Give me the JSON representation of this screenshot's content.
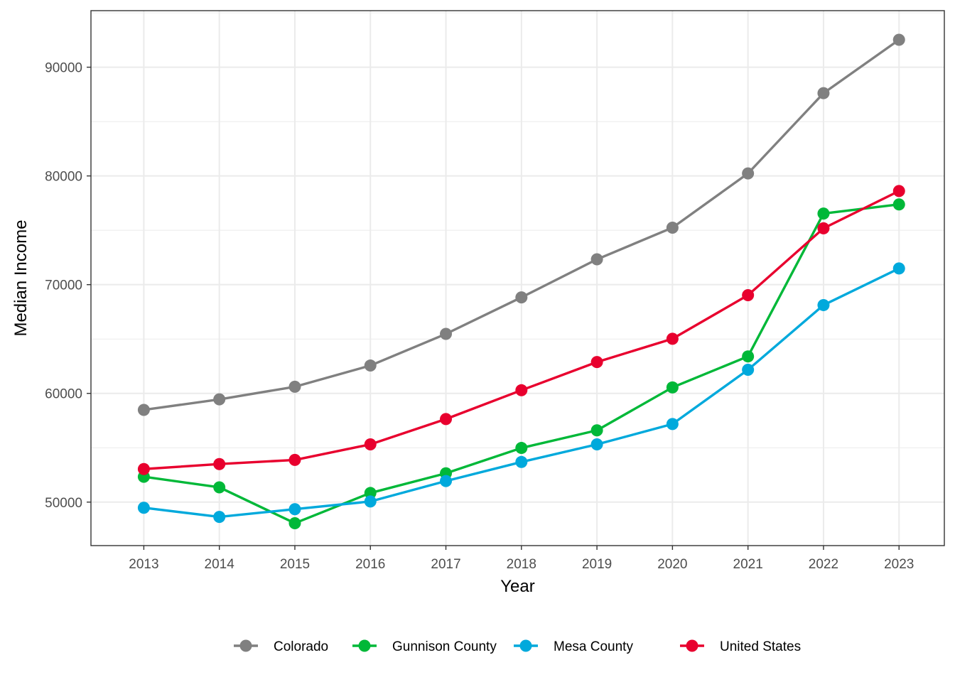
{
  "chart_data": {
    "type": "line",
    "title": "",
    "xlabel": "Year",
    "ylabel": "Median Income",
    "x": [
      2013,
      2014,
      2015,
      2016,
      2017,
      2018,
      2019,
      2020,
      2021,
      2022,
      2023
    ],
    "x_tick_labels": [
      "2013",
      "2014",
      "2015",
      "2016",
      "2017",
      "2018",
      "2019",
      "2020",
      "2021",
      "2022",
      "2023"
    ],
    "y_ticks": [
      50000,
      60000,
      70000,
      80000,
      90000
    ],
    "y_tick_labels": [
      "50000",
      "60000",
      "70000",
      "80000",
      "90000"
    ],
    "xlim": [
      2012.3,
      2023.6
    ],
    "ylim": [
      46000,
      95200
    ],
    "grid": true,
    "legend_position": "bottom",
    "series": [
      {
        "name": "Colorado",
        "color": "#808080",
        "values": [
          58480,
          59450,
          60610,
          62560,
          65470,
          68830,
          72330,
          75240,
          80230,
          87610,
          92520
        ]
      },
      {
        "name": "Gunnison County",
        "color": "#00b838",
        "values": [
          52330,
          51360,
          48060,
          50840,
          52650,
          54980,
          56600,
          60550,
          63400,
          76540,
          77380
        ]
      },
      {
        "name": "Mesa County",
        "color": "#00a9dc",
        "values": [
          49480,
          48640,
          49350,
          50060,
          51940,
          53690,
          55310,
          57180,
          62170,
          68120,
          71490
        ]
      },
      {
        "name": "United States",
        "color": "#e8002e",
        "values": [
          53040,
          53500,
          53880,
          55310,
          57640,
          60290,
          62880,
          65020,
          69030,
          75180,
          78610
        ]
      }
    ]
  }
}
